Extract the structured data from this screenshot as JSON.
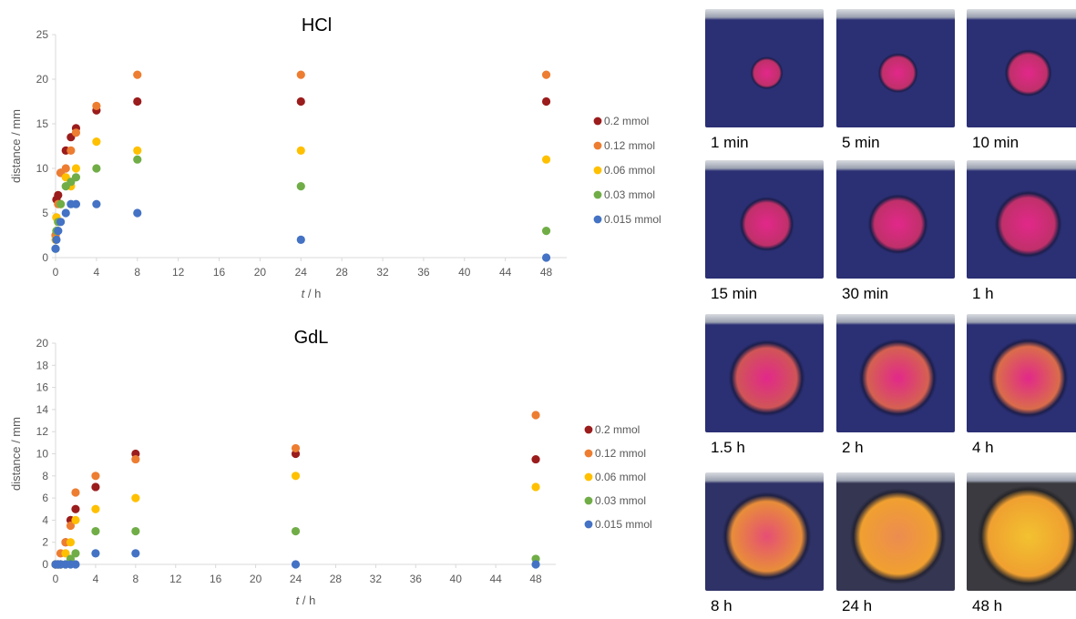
{
  "chart_data": [
    {
      "type": "scatter",
      "title": "HCl",
      "xlabel_var": "t",
      "xlabel_unit": " / h",
      "ylabel": "distance / mm",
      "xlim": [
        0,
        50
      ],
      "ylim": [
        0,
        25
      ],
      "xticks": [
        0,
        4,
        8,
        12,
        16,
        20,
        24,
        28,
        32,
        36,
        40,
        44,
        48
      ],
      "yticks": [
        0,
        5,
        10,
        15,
        20,
        25
      ],
      "legend_position": "right",
      "series": [
        {
          "name": "0.2 mmol",
          "color": "#9b1c1c",
          "x": [
            0,
            0.083,
            0.25,
            0.5,
            1,
            1.5,
            2,
            4,
            8,
            24,
            48
          ],
          "y": [
            2.5,
            6.5,
            7,
            9.5,
            12,
            13.5,
            14.5,
            16.5,
            17.5,
            17.5,
            17.5
          ]
        },
        {
          "name": "0.12 mmol",
          "color": "#ed7d31",
          "x": [
            0,
            0.083,
            0.25,
            0.5,
            1,
            1.5,
            2,
            4,
            8,
            24,
            48
          ],
          "y": [
            2.5,
            4.5,
            6,
            9.5,
            10,
            12,
            14,
            17,
            20.5,
            20.5,
            20.5
          ]
        },
        {
          "name": "0.06 mmol",
          "color": "#ffc000",
          "x": [
            0,
            0.083,
            0.25,
            0.5,
            1,
            1.5,
            2,
            4,
            8,
            24,
            48
          ],
          "y": [
            2,
            4.5,
            4,
            6,
            9,
            8,
            10,
            13,
            12,
            12,
            11
          ]
        },
        {
          "name": "0.03 mmol",
          "color": "#70ad47",
          "x": [
            0,
            0.083,
            0.25,
            0.5,
            1,
            1.5,
            2,
            4,
            8,
            24,
            48
          ],
          "y": [
            1,
            3,
            4,
            6,
            8,
            8.5,
            9,
            10,
            11,
            8,
            3
          ]
        },
        {
          "name": "0.015 mmol",
          "color": "#4472c4",
          "x": [
            0,
            0.083,
            0.25,
            0.5,
            1,
            1.5,
            2,
            4,
            8,
            24,
            48
          ],
          "y": [
            1,
            2,
            3,
            4,
            5,
            6,
            6,
            6,
            5,
            2,
            0
          ]
        }
      ]
    },
    {
      "type": "scatter",
      "title": "GdL",
      "xlabel_var": "t",
      "xlabel_unit": " / h",
      "ylabel": "distance / mm",
      "xlim": [
        0,
        50
      ],
      "ylim": [
        0,
        20
      ],
      "xticks": [
        0,
        4,
        8,
        12,
        16,
        20,
        24,
        28,
        32,
        36,
        40,
        44,
        48
      ],
      "yticks": [
        0,
        2,
        4,
        6,
        8,
        10,
        12,
        14,
        16,
        18,
        20
      ],
      "legend_position": "right",
      "series": [
        {
          "name": "0.2 mmol",
          "color": "#9b1c1c",
          "x": [
            0,
            0.25,
            0.5,
            1,
            1.5,
            2,
            4,
            8,
            24,
            48
          ],
          "y": [
            0,
            0,
            0,
            2,
            4,
            5,
            7,
            10,
            10,
            9.5
          ]
        },
        {
          "name": "0.12 mmol",
          "color": "#ed7d31",
          "x": [
            0,
            0.25,
            0.5,
            1,
            1.5,
            2,
            4,
            8,
            24,
            48
          ],
          "y": [
            0,
            0,
            1,
            2,
            3.5,
            6.5,
            8,
            9.5,
            10.5,
            13.5
          ]
        },
        {
          "name": "0.06 mmol",
          "color": "#ffc000",
          "x": [
            0,
            0.25,
            0.5,
            1,
            1.5,
            2,
            4,
            8,
            24,
            48
          ],
          "y": [
            0,
            0,
            0,
            1,
            2,
            4,
            5,
            6,
            8,
            7
          ]
        },
        {
          "name": "0.03 mmol",
          "color": "#70ad47",
          "x": [
            0,
            0.25,
            0.5,
            1,
            1.5,
            2,
            4,
            8,
            24,
            48
          ],
          "y": [
            0,
            0,
            0,
            0,
            0.5,
            1,
            3,
            3,
            3,
            0.5
          ]
        },
        {
          "name": "0.015 mmol",
          "color": "#4472c4",
          "x": [
            0,
            0.25,
            0.5,
            1,
            1.5,
            2,
            4,
            8,
            24,
            48
          ],
          "y": [
            0,
            0,
            0,
            0,
            0,
            0,
            1,
            1,
            0,
            0
          ]
        }
      ]
    }
  ],
  "photos": [
    {
      "caption": "1 min",
      "stage": 0.2
    },
    {
      "caption": "5 min",
      "stage": 0.3
    },
    {
      "caption": "10 min",
      "stage": 0.38
    },
    {
      "caption": "15 min",
      "stage": 0.45
    },
    {
      "caption": "30 min",
      "stage": 0.52
    },
    {
      "caption": "1 h",
      "stage": 0.6
    },
    {
      "caption": "1.5 h",
      "stage": 0.7
    },
    {
      "caption": "2 h",
      "stage": 0.73
    },
    {
      "caption": "4 h",
      "stage": 0.76
    },
    {
      "caption": "8 h",
      "stage": 0.85
    },
    {
      "caption": "24 h",
      "stage": 0.93
    },
    {
      "caption": "48 h",
      "stage": 1.0
    }
  ],
  "colors": {
    "axis": "#d9d9d9",
    "tick_label": "#595959",
    "gel_bg": "#2b2f74",
    "gel_bg_late": "#3a3a40"
  }
}
